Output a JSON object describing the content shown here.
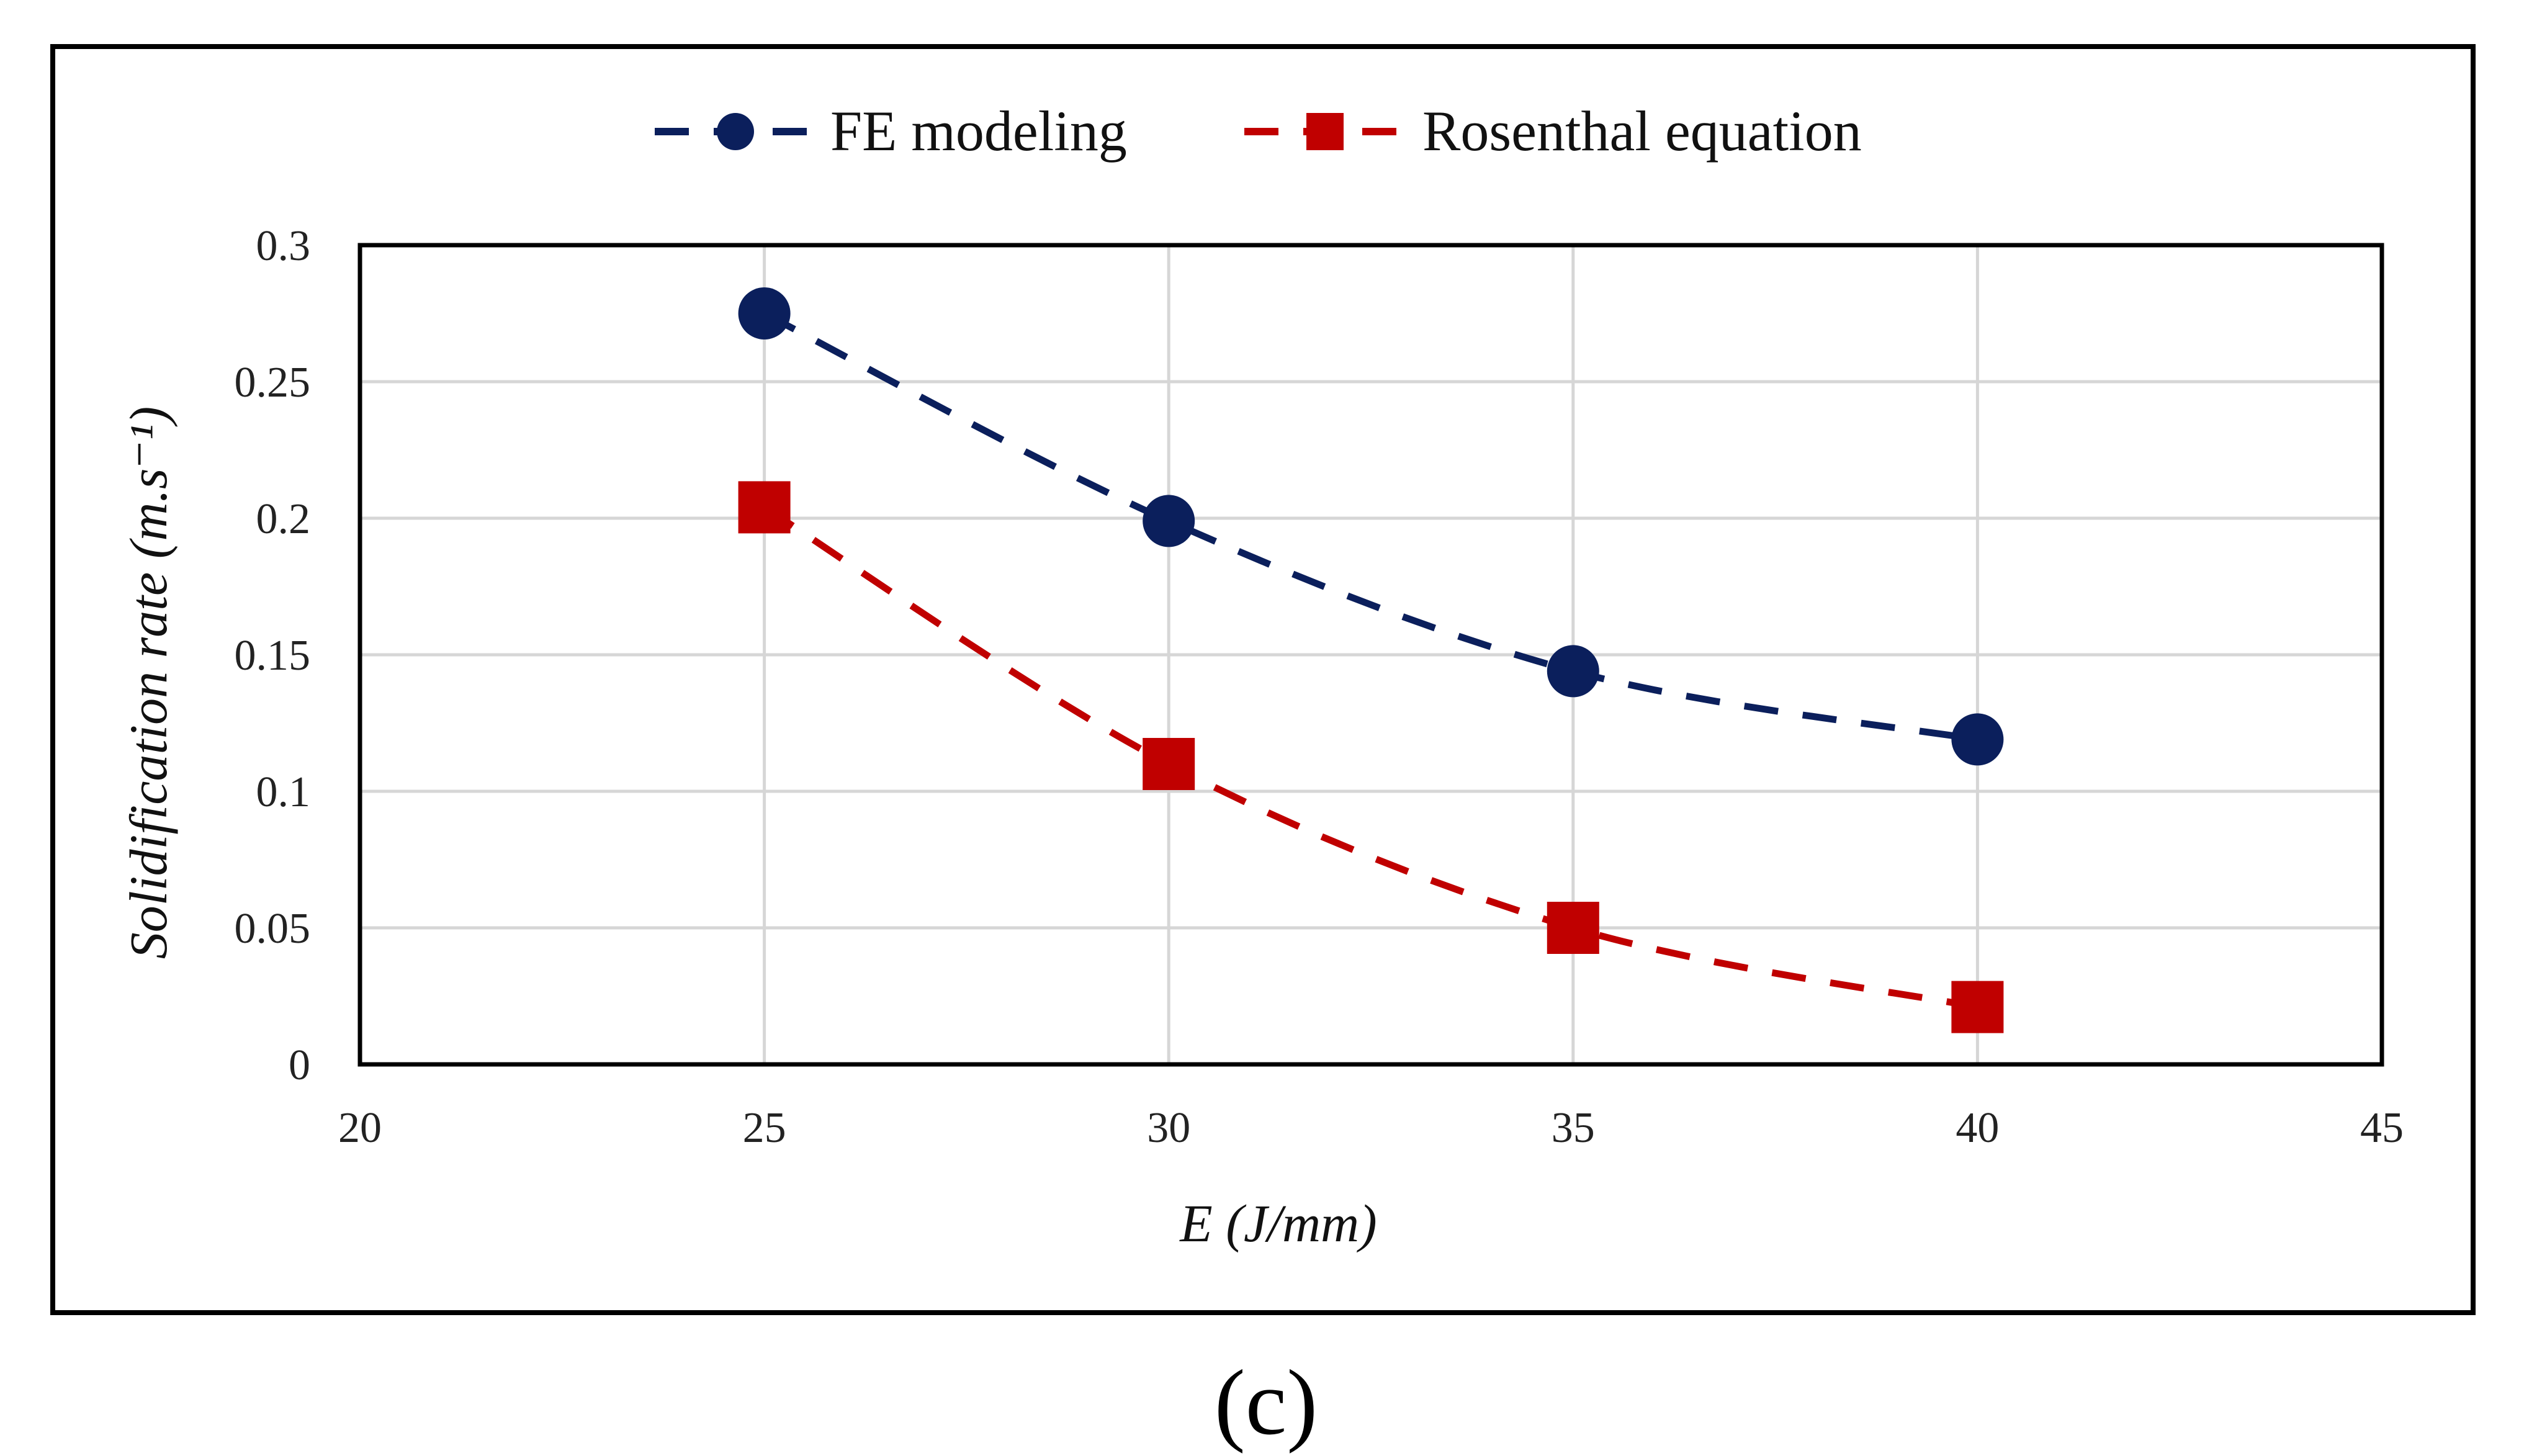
{
  "chart_data": {
    "type": "line",
    "xlabel": "E (J/mm)",
    "ylabel": "Solidification rate (m.s⁻¹)",
    "xlim": [
      20,
      45
    ],
    "ylim": [
      0,
      0.3
    ],
    "x_ticks": [
      "20",
      "25",
      "30",
      "35",
      "40",
      "45"
    ],
    "y_ticks": [
      "0",
      "0.05",
      "0.1",
      "0.15",
      "0.2",
      "0.25",
      "0.3"
    ],
    "grid": true,
    "legend_position": "top-center",
    "x": [
      25,
      30,
      35,
      40
    ],
    "series": [
      {
        "name": "FE modeling",
        "values": [
          0.275,
          0.199,
          0.144,
          0.119
        ],
        "color": "#0b1f5c",
        "marker": "circle",
        "line_style": "dashed"
      },
      {
        "name": "Rosenthal equation",
        "values": [
          0.204,
          0.11,
          0.05,
          0.021
        ],
        "color": "#c00000",
        "marker": "square",
        "line_style": "dashed"
      }
    ]
  },
  "caption": "(c)"
}
